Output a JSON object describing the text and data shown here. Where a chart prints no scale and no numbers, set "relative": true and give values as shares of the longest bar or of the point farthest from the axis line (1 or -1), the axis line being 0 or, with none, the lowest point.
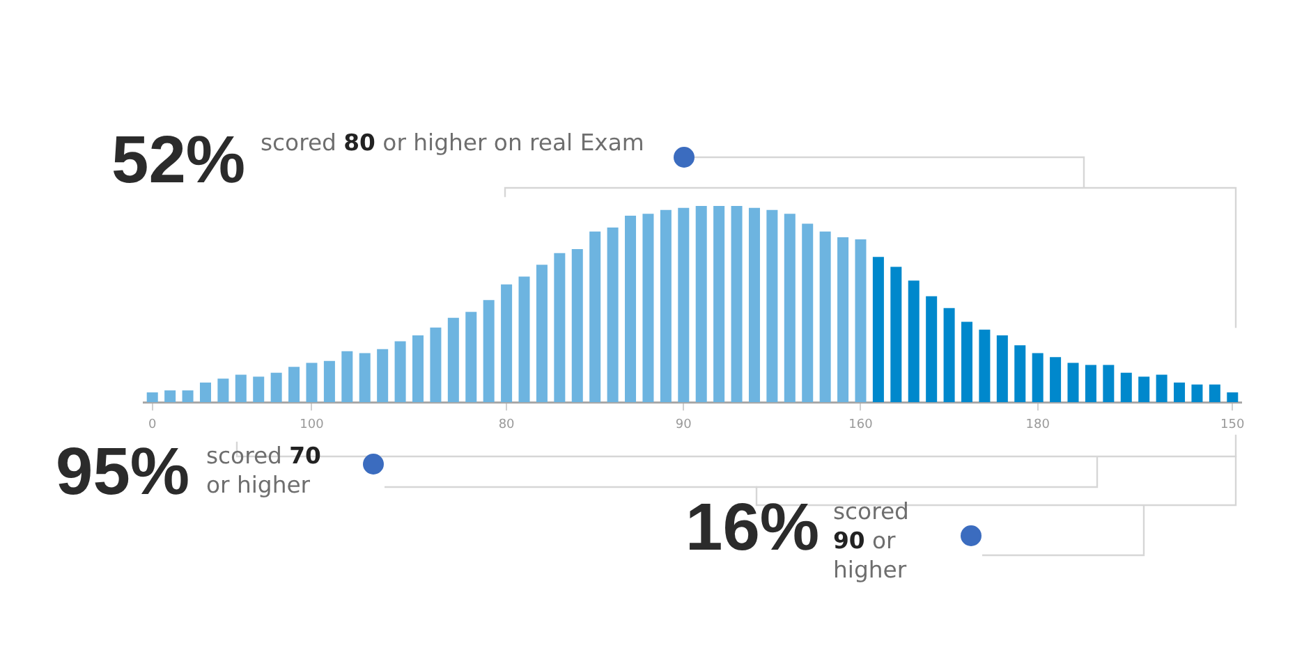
{
  "chart_data": {
    "type": "bar",
    "relative": true,
    "categories": [
      "0",
      null,
      null,
      null,
      null,
      null,
      null,
      null,
      null,
      "100",
      null,
      null,
      null,
      null,
      null,
      null,
      null,
      null,
      null,
      null,
      "80",
      null,
      null,
      null,
      null,
      null,
      null,
      null,
      null,
      null,
      "90",
      null,
      null,
      null,
      null,
      null,
      null,
      null,
      null,
      null,
      "160",
      null,
      null,
      null,
      null,
      null,
      null,
      null,
      null,
      null,
      "180",
      null,
      null,
      null,
      null,
      null,
      null,
      null,
      null,
      null,
      null,
      "150"
    ],
    "values": [
      0.05,
      0.06,
      0.06,
      0.1,
      0.12,
      0.14,
      0.13,
      0.15,
      0.18,
      0.2,
      0.21,
      0.26,
      0.25,
      0.27,
      0.31,
      0.34,
      0.38,
      0.43,
      0.46,
      0.52,
      0.6,
      0.64,
      0.7,
      0.76,
      0.78,
      0.87,
      0.89,
      0.95,
      0.96,
      0.98,
      0.99,
      1,
      1,
      1,
      0.99,
      0.98,
      0.96,
      0.91,
      0.87,
      0.84,
      0.83,
      0.74,
      0.69,
      0.62,
      0.54,
      0.48,
      0.41,
      0.37,
      0.34,
      0.29,
      0.25,
      0.23,
      0.2,
      0.19,
      0.19,
      0.15,
      0.13,
      0.14,
      0.1,
      0.09,
      0.09,
      0.05
    ],
    "colors": [
      "#6db4e0",
      "#6db4e0",
      "#6db4e0",
      "#6db4e0",
      "#6db4e0",
      "#6db4e0",
      "#6db4e0",
      "#6db4e0",
      "#6db4e0",
      "#6db4e0",
      "#6db4e0",
      "#6db4e0",
      "#6db4e0",
      "#6db4e0",
      "#6db4e0",
      "#6db4e0",
      "#6db4e0",
      "#6db4e0",
      "#6db4e0",
      "#6db4e0",
      "#6db4e0",
      "#6db4e0",
      "#6db4e0",
      "#6db4e0",
      "#6db4e0",
      "#6db4e0",
      "#6db4e0",
      "#6db4e0",
      "#6db4e0",
      "#6db4e0",
      "#6db4e0",
      "#6db4e0",
      "#6db4e0",
      "#6db4e0",
      "#6db4e0",
      "#6db4e0",
      "#6db4e0",
      "#6db4e0",
      "#6db4e0",
      "#6db4e0",
      "#6db4e0",
      "#0088cc",
      "#0088cc",
      "#0088cc",
      "#0088cc",
      "#0088cc",
      "#0088cc",
      "#0088cc",
      "#0088cc",
      "#0088cc",
      "#0088cc",
      "#0088cc",
      "#0088cc",
      "#0088cc",
      "#0088cc",
      "#0088cc",
      "#0088cc",
      "#0088cc",
      "#0088cc",
      "#0088cc",
      "#0088cc",
      "#0088cc"
    ],
    "annotations": [
      "52%",
      "scored 80 or higher on real Exam",
      "95%",
      "scored 70 or higher",
      "16%",
      "scored 90 or higher"
    ]
  }
}
